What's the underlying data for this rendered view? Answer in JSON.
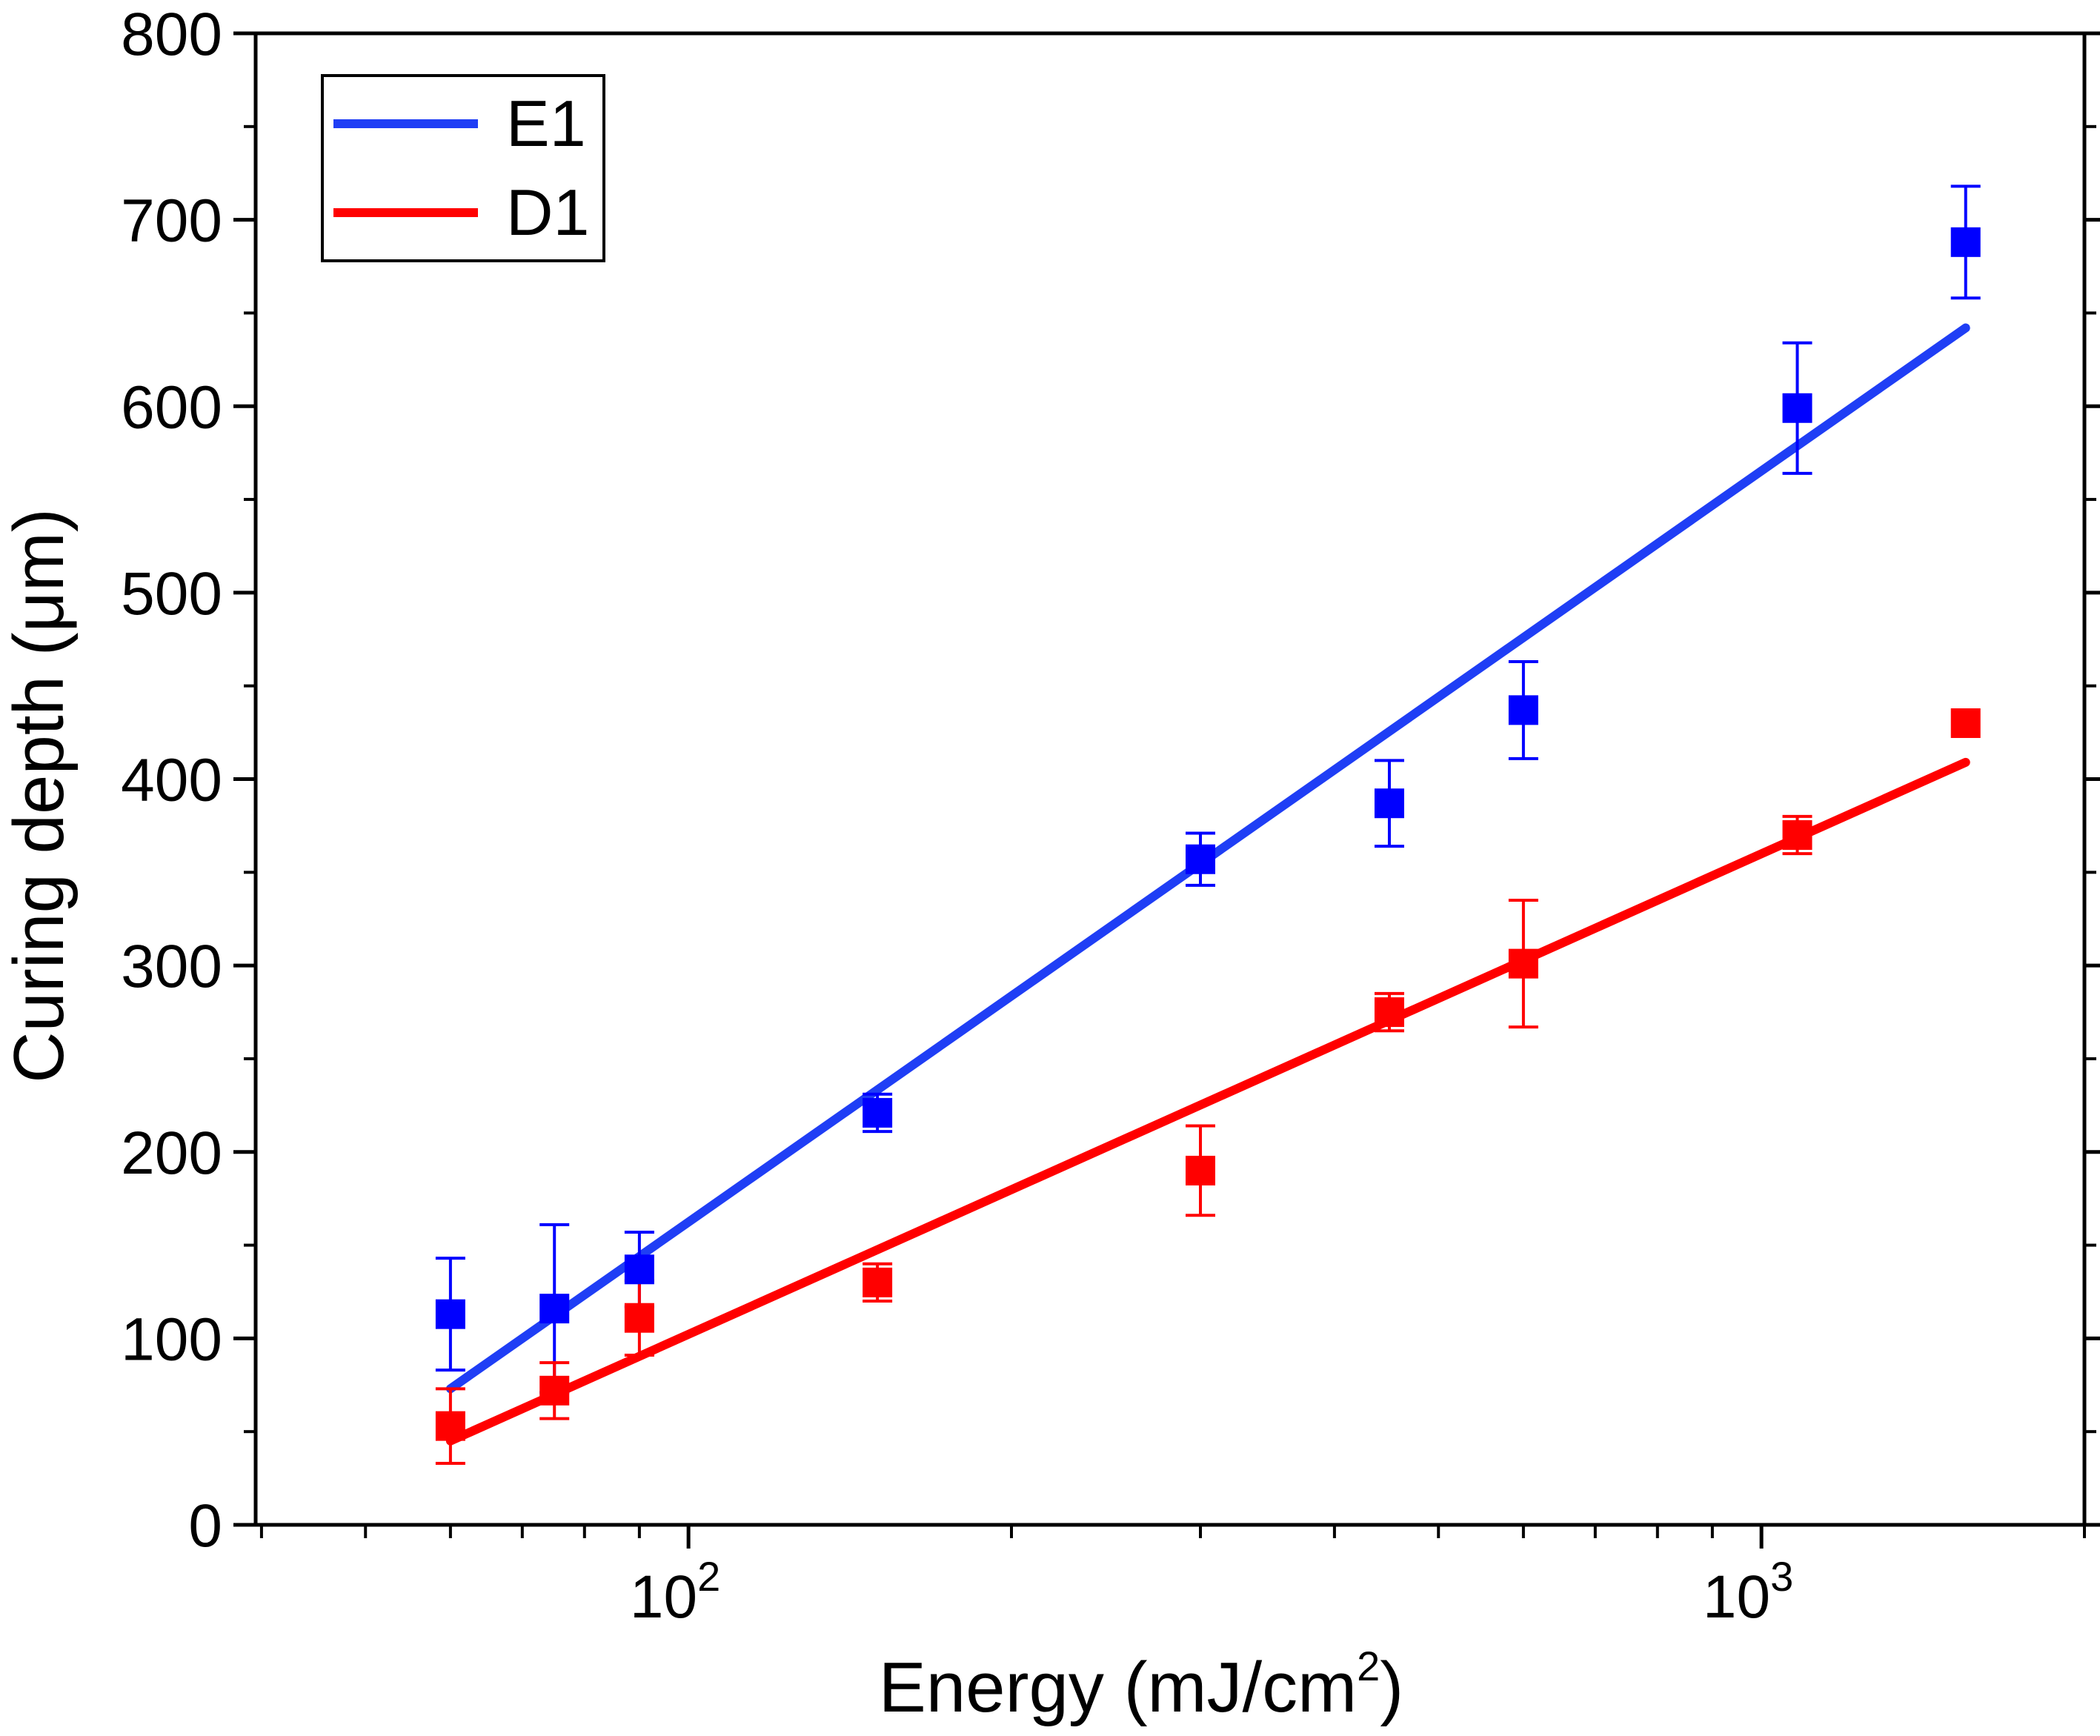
{
  "chart_data": {
    "type": "scatter",
    "x_scale": "log",
    "xlabel": "Energy (mJ/cm",
    "xlabel_sup": "2",
    "xlabel_close": ")",
    "ylabel": "Curing depth (μm)",
    "xlim": [
      39.5,
      2000
    ],
    "ylim": [
      0,
      800
    ],
    "y_ticks": [
      "0",
      "100",
      "200",
      "300",
      "400",
      "500",
      "600",
      "700",
      "800"
    ],
    "x_ticks": [
      {
        "value": 100,
        "base": "10",
        "exp": "2"
      },
      {
        "value": 1000,
        "base": "10",
        "exp": "3"
      }
    ],
    "legend_position": "top-left",
    "series": [
      {
        "name": "E1",
        "color": "#0000ff",
        "line_color": "#1f3ef5",
        "x": [
          60,
          75,
          90,
          150,
          300,
          450,
          600,
          1080,
          1550
        ],
        "y": [
          113,
          116,
          137,
          221,
          357,
          387,
          437,
          599,
          688
        ],
        "yerr": [
          30,
          45,
          20,
          10,
          14,
          23,
          26,
          35,
          30
        ],
        "fit": {
          "x": [
            60,
            1550
          ],
          "y": [
            73,
            642
          ]
        }
      },
      {
        "name": "D1",
        "color": "#ff0000",
        "line_color": "#ff0000",
        "x": [
          60,
          75,
          90,
          150,
          300,
          450,
          600,
          1080,
          1550
        ],
        "y": [
          53,
          72,
          111,
          130,
          190,
          275,
          301,
          370,
          430
        ],
        "yerr": [
          20,
          15,
          20,
          10,
          24,
          10,
          34,
          10,
          0
        ],
        "fit": {
          "x": [
            60,
            1550
          ],
          "y": [
            45,
            409
          ]
        }
      }
    ]
  }
}
